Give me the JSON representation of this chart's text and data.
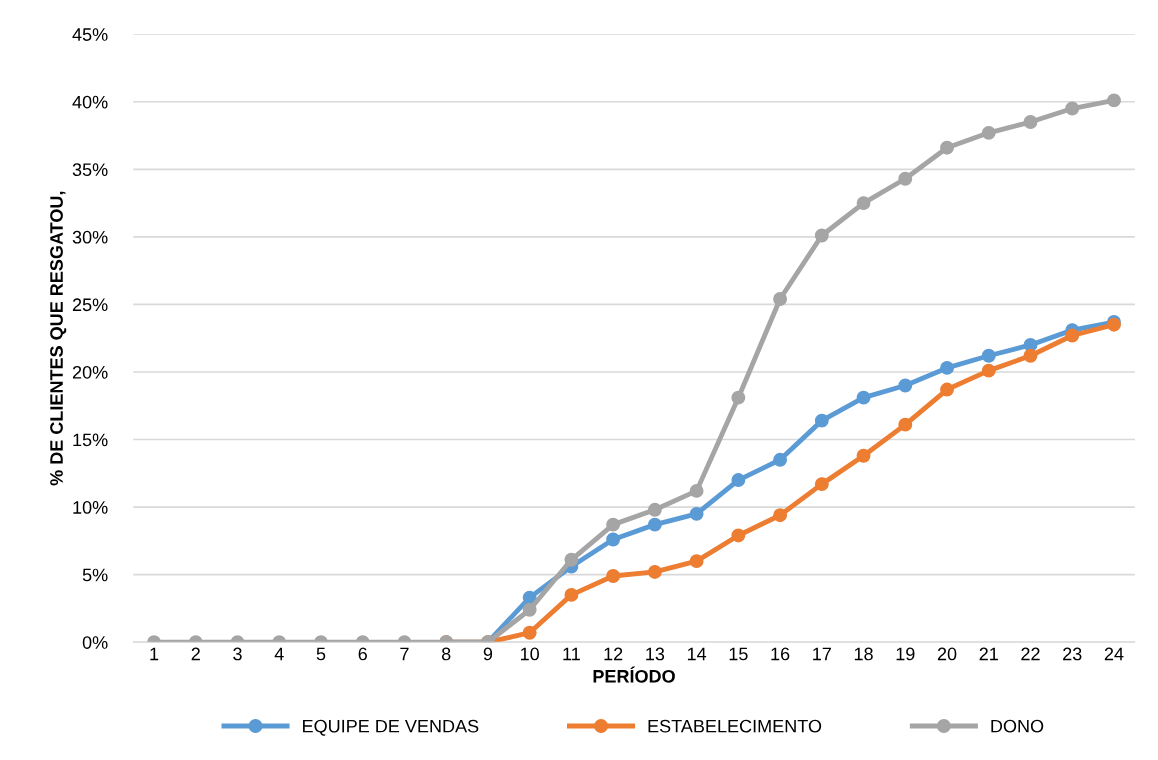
{
  "chart_data": {
    "type": "line",
    "xlabel": "PERÍODO",
    "ylabel": "% DE CLIENTES QUE RESGATOU,",
    "categories": [
      "1",
      "2",
      "3",
      "4",
      "5",
      "6",
      "7",
      "8",
      "9",
      "10",
      "11",
      "12",
      "13",
      "14",
      "15",
      "16",
      "17",
      "18",
      "19",
      "20",
      "21",
      "22",
      "23",
      "24"
    ],
    "series": [
      {
        "name": "EQUIPE DE VENDAS",
        "color": "#5b9bd5",
        "values": [
          null,
          null,
          null,
          null,
          null,
          null,
          null,
          0,
          0,
          3.3,
          5.6,
          7.6,
          8.7,
          9.5,
          12.0,
          13.5,
          16.4,
          18.1,
          19.0,
          20.3,
          21.2,
          22.0,
          23.1,
          23.7
        ]
      },
      {
        "name": "ESTABELECIMENTO",
        "color": "#ed7d31",
        "values": [
          null,
          null,
          null,
          null,
          null,
          null,
          null,
          0,
          0,
          0.7,
          3.5,
          4.9,
          5.2,
          6.0,
          7.9,
          9.4,
          11.7,
          13.8,
          16.1,
          18.7,
          20.1,
          21.2,
          22.7,
          23.5
        ]
      },
      {
        "name": "DONO",
        "color": "#a5a5a5",
        "values": [
          0,
          0,
          0,
          0,
          0,
          0,
          0,
          0,
          0,
          2.4,
          6.1,
          8.7,
          9.8,
          11.2,
          18.1,
          25.4,
          30.1,
          32.5,
          34.3,
          36.6,
          37.7,
          38.5,
          39.5,
          40.1
        ]
      }
    ],
    "ylim": [
      0,
      45
    ],
    "yticks": [
      {
        "value": 0,
        "label": "0%"
      },
      {
        "value": 5,
        "label": "5%"
      },
      {
        "value": 10,
        "label": "10%"
      },
      {
        "value": 15,
        "label": "15%"
      },
      {
        "value": 20,
        "label": "20%"
      },
      {
        "value": 25,
        "label": "25%"
      },
      {
        "value": 30,
        "label": "30%"
      },
      {
        "value": 35,
        "label": "35%"
      },
      {
        "value": 40,
        "label": "40%"
      },
      {
        "value": 45,
        "label": "45%"
      }
    ],
    "grid": "y",
    "legend": "bottom",
    "marker": "circle",
    "line_style": "solid"
  }
}
